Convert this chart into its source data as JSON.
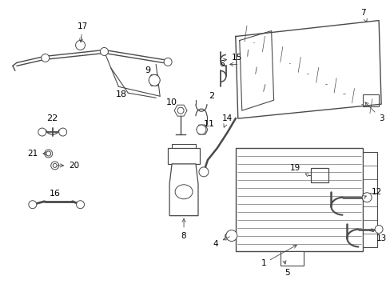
{
  "bg_color": "#ffffff",
  "line_color": "#4a4a4a",
  "fig_width": 4.89,
  "fig_height": 3.6,
  "dpi": 100
}
